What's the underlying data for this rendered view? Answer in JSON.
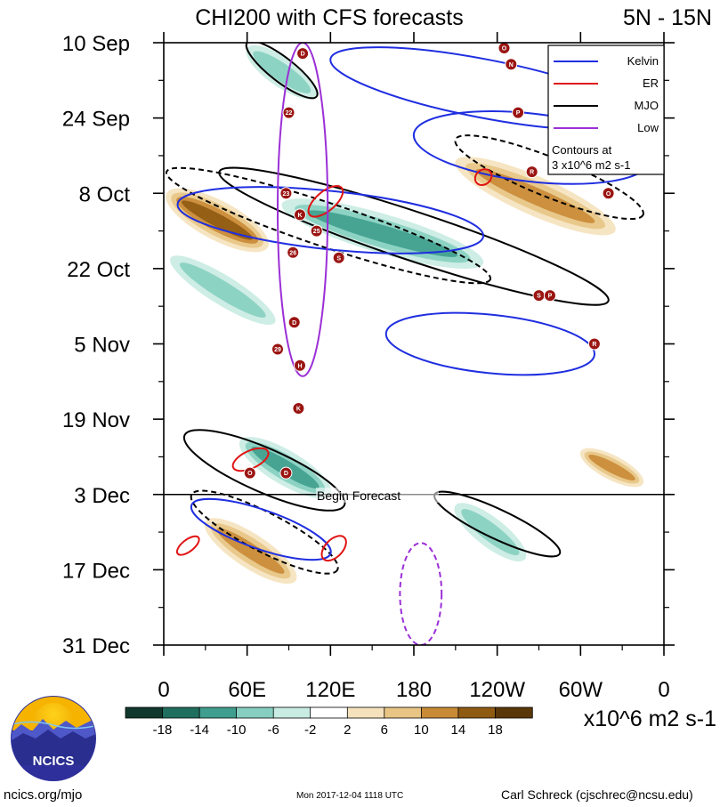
{
  "chart_data": {
    "type": "heatmap",
    "title": "CHI200 with CFS forecasts",
    "lat_band": "5N - 15N",
    "y_tick_labels": [
      "10 Sep",
      "24 Sep",
      "8 Oct",
      "22 Oct",
      "5 Nov",
      "19 Nov",
      "3 Dec",
      "17 Dec",
      "31 Dec"
    ],
    "x_tick_labels": [
      "0",
      "60E",
      "120E",
      "180",
      "120W",
      "60W",
      "0"
    ],
    "x_range_deg_east": [
      0,
      360
    ],
    "day_range": [
      0,
      112
    ],
    "forecast_start": {
      "day": 84,
      "label": "Begin Forecast"
    },
    "legend": {
      "entries": [
        {
          "name": "Kelvin",
          "color": "#1f2ee0"
        },
        {
          "name": "ER",
          "color": "#e01414"
        },
        {
          "name": "MJO",
          "color": "#000000"
        },
        {
          "name": "Low",
          "color": "#9b2fd6"
        }
      ],
      "note_line1": "Contours at",
      "note_line2": "3 x10^6 m2 s-1"
    },
    "colorbar": {
      "levels": [
        "-18",
        "-14",
        "-10",
        "-6",
        "-2",
        "2",
        "6",
        "10",
        "14",
        "18"
      ],
      "colors": [
        "#10382c",
        "#1f6e5e",
        "#3f9e8e",
        "#86cfc0",
        "#c8ebe2",
        "#ffffff",
        "#f5e2bd",
        "#e8c585",
        "#c98a36",
        "#8f5a12",
        "#5a3708"
      ],
      "units": "x10^6 m2 s-1"
    },
    "anomaly_bands": [
      {
        "lon0": 2,
        "day0": 28,
        "lon1": 75,
        "day1": 38,
        "value": 14,
        "halfwidth_deg": 40
      },
      {
        "lon0": 85,
        "day0": 30,
        "lon1": 230,
        "day1": 41,
        "value": -12,
        "halfwidth_deg": 40
      },
      {
        "lon0": 210,
        "day0": 22,
        "lon1": 325,
        "day1": 35,
        "value": 12,
        "halfwidth_deg": 40
      },
      {
        "lon0": 30,
        "day0": 89,
        "lon1": 95,
        "day1": 100,
        "value": 12,
        "halfwidth_deg": 35
      },
      {
        "lon0": 55,
        "day0": 74,
        "lon1": 120,
        "day1": 84,
        "value": -10,
        "halfwidth_deg": 35
      },
      {
        "lon0": 5,
        "day0": 40,
        "lon1": 80,
        "day1": 52,
        "value": -6,
        "halfwidth_deg": 30
      },
      {
        "lon0": 210,
        "day0": 86,
        "lon1": 260,
        "day1": 96,
        "value": -6,
        "halfwidth_deg": 30
      },
      {
        "lon0": 300,
        "day0": 76,
        "lon1": 345,
        "day1": 82,
        "value": 10,
        "halfwidth_deg": 25
      },
      {
        "lon0": 60,
        "day0": 1,
        "lon1": 110,
        "day1": 10,
        "value": -8,
        "halfwidth_deg": 30
      }
    ],
    "mjo_contours": [
      {
        "lon0": 2,
        "day0": 24,
        "lon1": 235,
        "day1": 44,
        "halfwidth_deg": 45,
        "style": "dashed"
      },
      {
        "lon0": 40,
        "day0": 24,
        "lon1": 320,
        "day1": 48,
        "halfwidth_deg": 50,
        "style": "solid"
      },
      {
        "lon0": 210,
        "day0": 18,
        "lon1": 345,
        "day1": 32,
        "halfwidth_deg": 40,
        "style": "dashed"
      },
      {
        "lon0": 15,
        "day0": 73,
        "lon1": 130,
        "day1": 86,
        "halfwidth_deg": 45,
        "style": "solid"
      },
      {
        "lon0": 20,
        "day0": 84,
        "lon1": 125,
        "day1": 98,
        "halfwidth_deg": 40,
        "style": "dashed"
      },
      {
        "lon0": 195,
        "day0": 84,
        "lon1": 285,
        "day1": 95,
        "halfwidth_deg": 30,
        "style": "solid"
      },
      {
        "lon0": 60,
        "day0": 0,
        "lon1": 110,
        "day1": 10,
        "halfwidth_deg": 25,
        "style": "solid"
      }
    ],
    "kelvin_contours": [
      {
        "lon0": 10,
        "day0": 30,
        "lon1": 230,
        "day1": 36,
        "halfwidth_deg": 60
      },
      {
        "lon0": 180,
        "day0": 17,
        "lon1": 350,
        "day1": 22,
        "halfwidth_deg": 70
      },
      {
        "lon0": 160,
        "day0": 54,
        "lon1": 310,
        "day1": 58,
        "halfwidth_deg": 60
      },
      {
        "lon0": 20,
        "day0": 86,
        "lon1": 120,
        "day1": 95,
        "halfwidth_deg": 40
      },
      {
        "lon0": 120,
        "day0": 3,
        "lon1": 340,
        "day1": 14,
        "halfwidth_deg": 60
      }
    ],
    "er_contours": [
      {
        "lon0": 128,
        "day0": 27,
        "lon1": 105,
        "day1": 32,
        "halfwidth_deg": 20
      },
      {
        "lon0": 235,
        "day0": 24,
        "lon1": 225,
        "day1": 26,
        "halfwidth_deg": 15
      },
      {
        "lon0": 50,
        "day0": 79,
        "lon1": 75,
        "day1": 76,
        "halfwidth_deg": 18
      },
      {
        "lon0": 115,
        "day0": 96,
        "lon1": 130,
        "day1": 92,
        "halfwidth_deg": 18
      },
      {
        "lon0": 10,
        "day0": 95,
        "lon1": 25,
        "day1": 92,
        "halfwidth_deg": 12
      }
    ],
    "low_contours": [
      {
        "lon_center": 100,
        "day_top": 0,
        "day_bottom": 62,
        "halfwidth_deg": 18
      },
      {
        "lon_center": 185,
        "day_top": 93,
        "day_bottom": 112,
        "halfwidth_deg": 15
      }
    ],
    "storm_markers": [
      {
        "label": "D",
        "lon": 100,
        "day": 2
      },
      {
        "label": "22",
        "lon": 90,
        "day": 13
      },
      {
        "label": "23",
        "lon": 88,
        "day": 28
      },
      {
        "label": "K",
        "lon": 98,
        "day": 32
      },
      {
        "label": "25",
        "lon": 110,
        "day": 35
      },
      {
        "label": "26",
        "lon": 93,
        "day": 39
      },
      {
        "label": "S",
        "lon": 126,
        "day": 40
      },
      {
        "label": "D",
        "lon": 94,
        "day": 52
      },
      {
        "label": "29",
        "lon": 82,
        "day": 57
      },
      {
        "label": "H",
        "lon": 98,
        "day": 60
      },
      {
        "label": "K",
        "lon": 97,
        "day": 68
      },
      {
        "label": "O",
        "lon": 62,
        "day": 80
      },
      {
        "label": "D",
        "lon": 88,
        "day": 80
      },
      {
        "label": "O",
        "lon": 245,
        "day": 1
      },
      {
        "label": "N",
        "lon": 250,
        "day": 4
      },
      {
        "label": "P",
        "lon": 255,
        "day": 13
      },
      {
        "label": "R",
        "lon": 265,
        "day": 24
      },
      {
        "label": "O",
        "lon": 320,
        "day": 28
      },
      {
        "label": "S",
        "lon": 270,
        "day": 47
      },
      {
        "label": "P",
        "lon": 278,
        "day": 47
      },
      {
        "label": "R",
        "lon": 310,
        "day": 56
      }
    ]
  },
  "footer": {
    "logo_text": "NCICS",
    "site": "ncics.org/mjo",
    "timestamp": "Mon 2017-12-04 1118 UTC",
    "author": "Carl Schreck (cjschrec@ncsu.edu)"
  }
}
